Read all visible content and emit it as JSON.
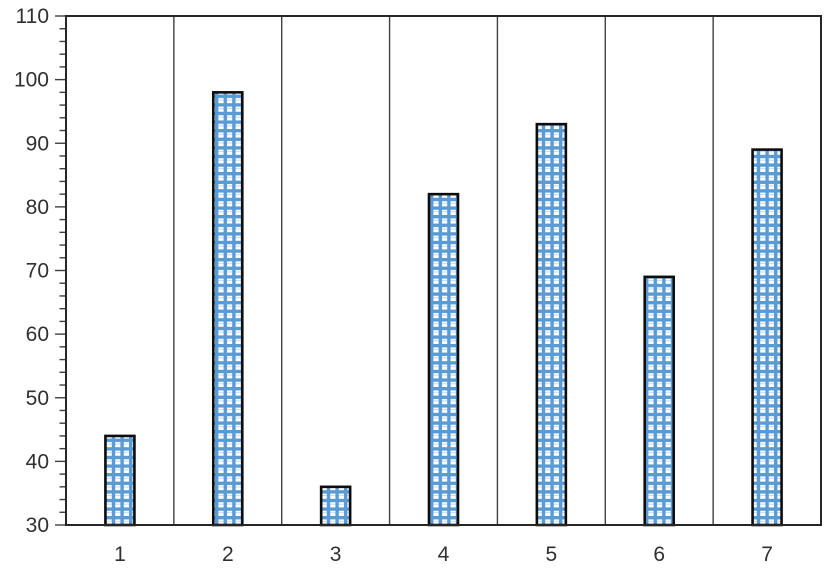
{
  "chart_data": {
    "type": "bar",
    "categories": [
      "1",
      "2",
      "3",
      "4",
      "5",
      "6",
      "7"
    ],
    "values": [
      44,
      98,
      36,
      82,
      93,
      69,
      89
    ],
    "title": "",
    "xlabel": "",
    "ylabel": "",
    "ylim": [
      30,
      110
    ],
    "y_major_step": 10,
    "y_minor_step": 2,
    "y_tick_labels": [
      "30",
      "40",
      "50",
      "60",
      "70",
      "80",
      "90",
      "100",
      "110"
    ],
    "grid": "vertical-category-boundaries",
    "legend": "none",
    "colors": {
      "bar_pattern_blue": "#5b9bd5",
      "bar_pattern_background": "#ffffff",
      "bar_outline": "#0d0d0d",
      "frame": "#262626",
      "gridline": "#404040",
      "tick": "#404040",
      "label_text": "#303030",
      "canvas_background": "#ffffff"
    }
  }
}
